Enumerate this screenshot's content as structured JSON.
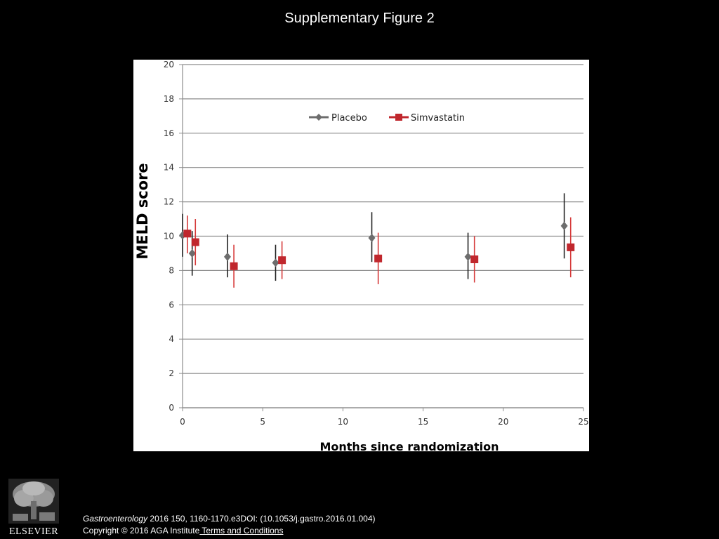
{
  "slide": {
    "title": "Supplementary Figure 2"
  },
  "chart_data": {
    "type": "scatter",
    "title": "",
    "xlabel": "Months since randomization",
    "ylabel": "MELD score",
    "xlim": [
      0,
      25
    ],
    "ylim": [
      0,
      20
    ],
    "x_ticks": [
      0,
      5,
      10,
      15,
      20,
      25
    ],
    "y_ticks": [
      0,
      2,
      4,
      6,
      8,
      10,
      12,
      14,
      16,
      18,
      20
    ],
    "grid": "horizontal",
    "legend_position": "top-center",
    "series": [
      {
        "name": "Placebo",
        "color": "#6d6d6d",
        "bar_color": "#222222",
        "marker": "diamond",
        "points": [
          {
            "x": 0.0,
            "y": 10.05,
            "low": 8.8,
            "high": 11.3
          },
          {
            "x": 0.6,
            "y": 9.0,
            "low": 7.7,
            "high": 10.3
          },
          {
            "x": 2.8,
            "y": 8.8,
            "low": 7.6,
            "high": 10.1
          },
          {
            "x": 5.8,
            "y": 8.45,
            "low": 7.4,
            "high": 9.5
          },
          {
            "x": 11.8,
            "y": 9.9,
            "low": 8.5,
            "high": 11.4
          },
          {
            "x": 17.8,
            "y": 8.8,
            "low": 7.5,
            "high": 10.2
          },
          {
            "x": 23.8,
            "y": 10.6,
            "low": 8.7,
            "high": 12.5
          }
        ]
      },
      {
        "name": "Simvastatin",
        "color": "#c0272d",
        "bar_color": "#d63a3a",
        "marker": "square",
        "points": [
          {
            "x": 0.3,
            "y": 10.15,
            "low": 9.0,
            "high": 11.2
          },
          {
            "x": 0.8,
            "y": 9.65,
            "low": 8.3,
            "high": 11.0
          },
          {
            "x": 3.2,
            "y": 8.25,
            "low": 7.0,
            "high": 9.5
          },
          {
            "x": 6.2,
            "y": 8.6,
            "low": 7.5,
            "high": 9.7
          },
          {
            "x": 12.2,
            "y": 8.7,
            "low": 7.2,
            "high": 10.2
          },
          {
            "x": 18.2,
            "y": 8.65,
            "low": 7.3,
            "high": 10.0
          },
          {
            "x": 24.2,
            "y": 9.35,
            "low": 7.6,
            "high": 11.1
          }
        ]
      }
    ]
  },
  "footer": {
    "journal": "Gastroenterology",
    "citation": " 2016 150, 1160-1170.e3DOI: (10.1053/j.gastro.2016.01.004)",
    "copyright": "Copyright © 2016 AGA Institute",
    "terms_link": " Terms and Conditions"
  },
  "logo": {
    "text": "ELSEVIER",
    "icon": "elsevier-tree-icon"
  }
}
